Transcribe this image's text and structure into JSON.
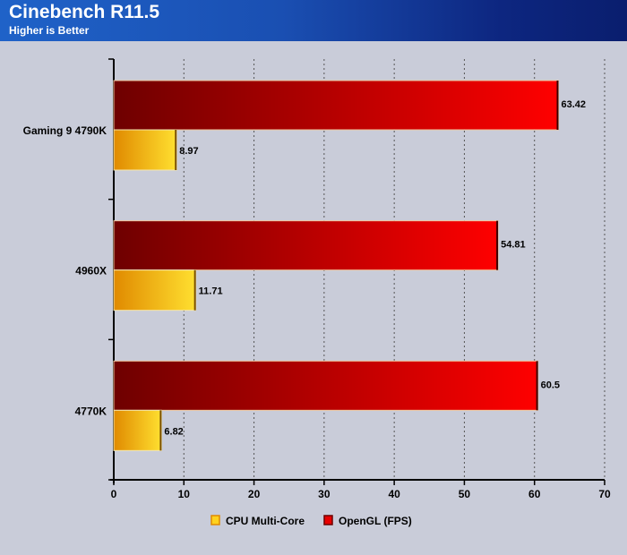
{
  "chart_data": {
    "type": "bar",
    "orientation": "horizontal",
    "title": "Cinebench R11.5",
    "subtitle": "Higher is Better",
    "categories": [
      "Gaming 9 4790K",
      "4960X",
      "4770K"
    ],
    "series": [
      {
        "name": "OpenGL (FPS)",
        "values": [
          63.42,
          54.81,
          60.5
        ],
        "color": "#e80000",
        "dark_color": "#6e0000"
      },
      {
        "name": "CPU Multi-Core",
        "values": [
          8.97,
          11.71,
          6.82
        ],
        "color": "#ffd21e",
        "dark_color": "#e08a00"
      }
    ],
    "value_labels": {
      "OpenGL (FPS)": [
        "63.42",
        "54.81",
        "60.5"
      ],
      "CPU Multi-Core": [
        "8.97",
        "11.71",
        "6.82"
      ]
    },
    "xlim": [
      0,
      70
    ],
    "xticks": [
      0,
      10,
      20,
      30,
      40,
      50,
      60,
      70
    ],
    "grid": "vertical-dotted",
    "legend": {
      "placement": "bottom",
      "entries": [
        "CPU Multi-Core",
        "OpenGL (FPS)"
      ]
    }
  }
}
